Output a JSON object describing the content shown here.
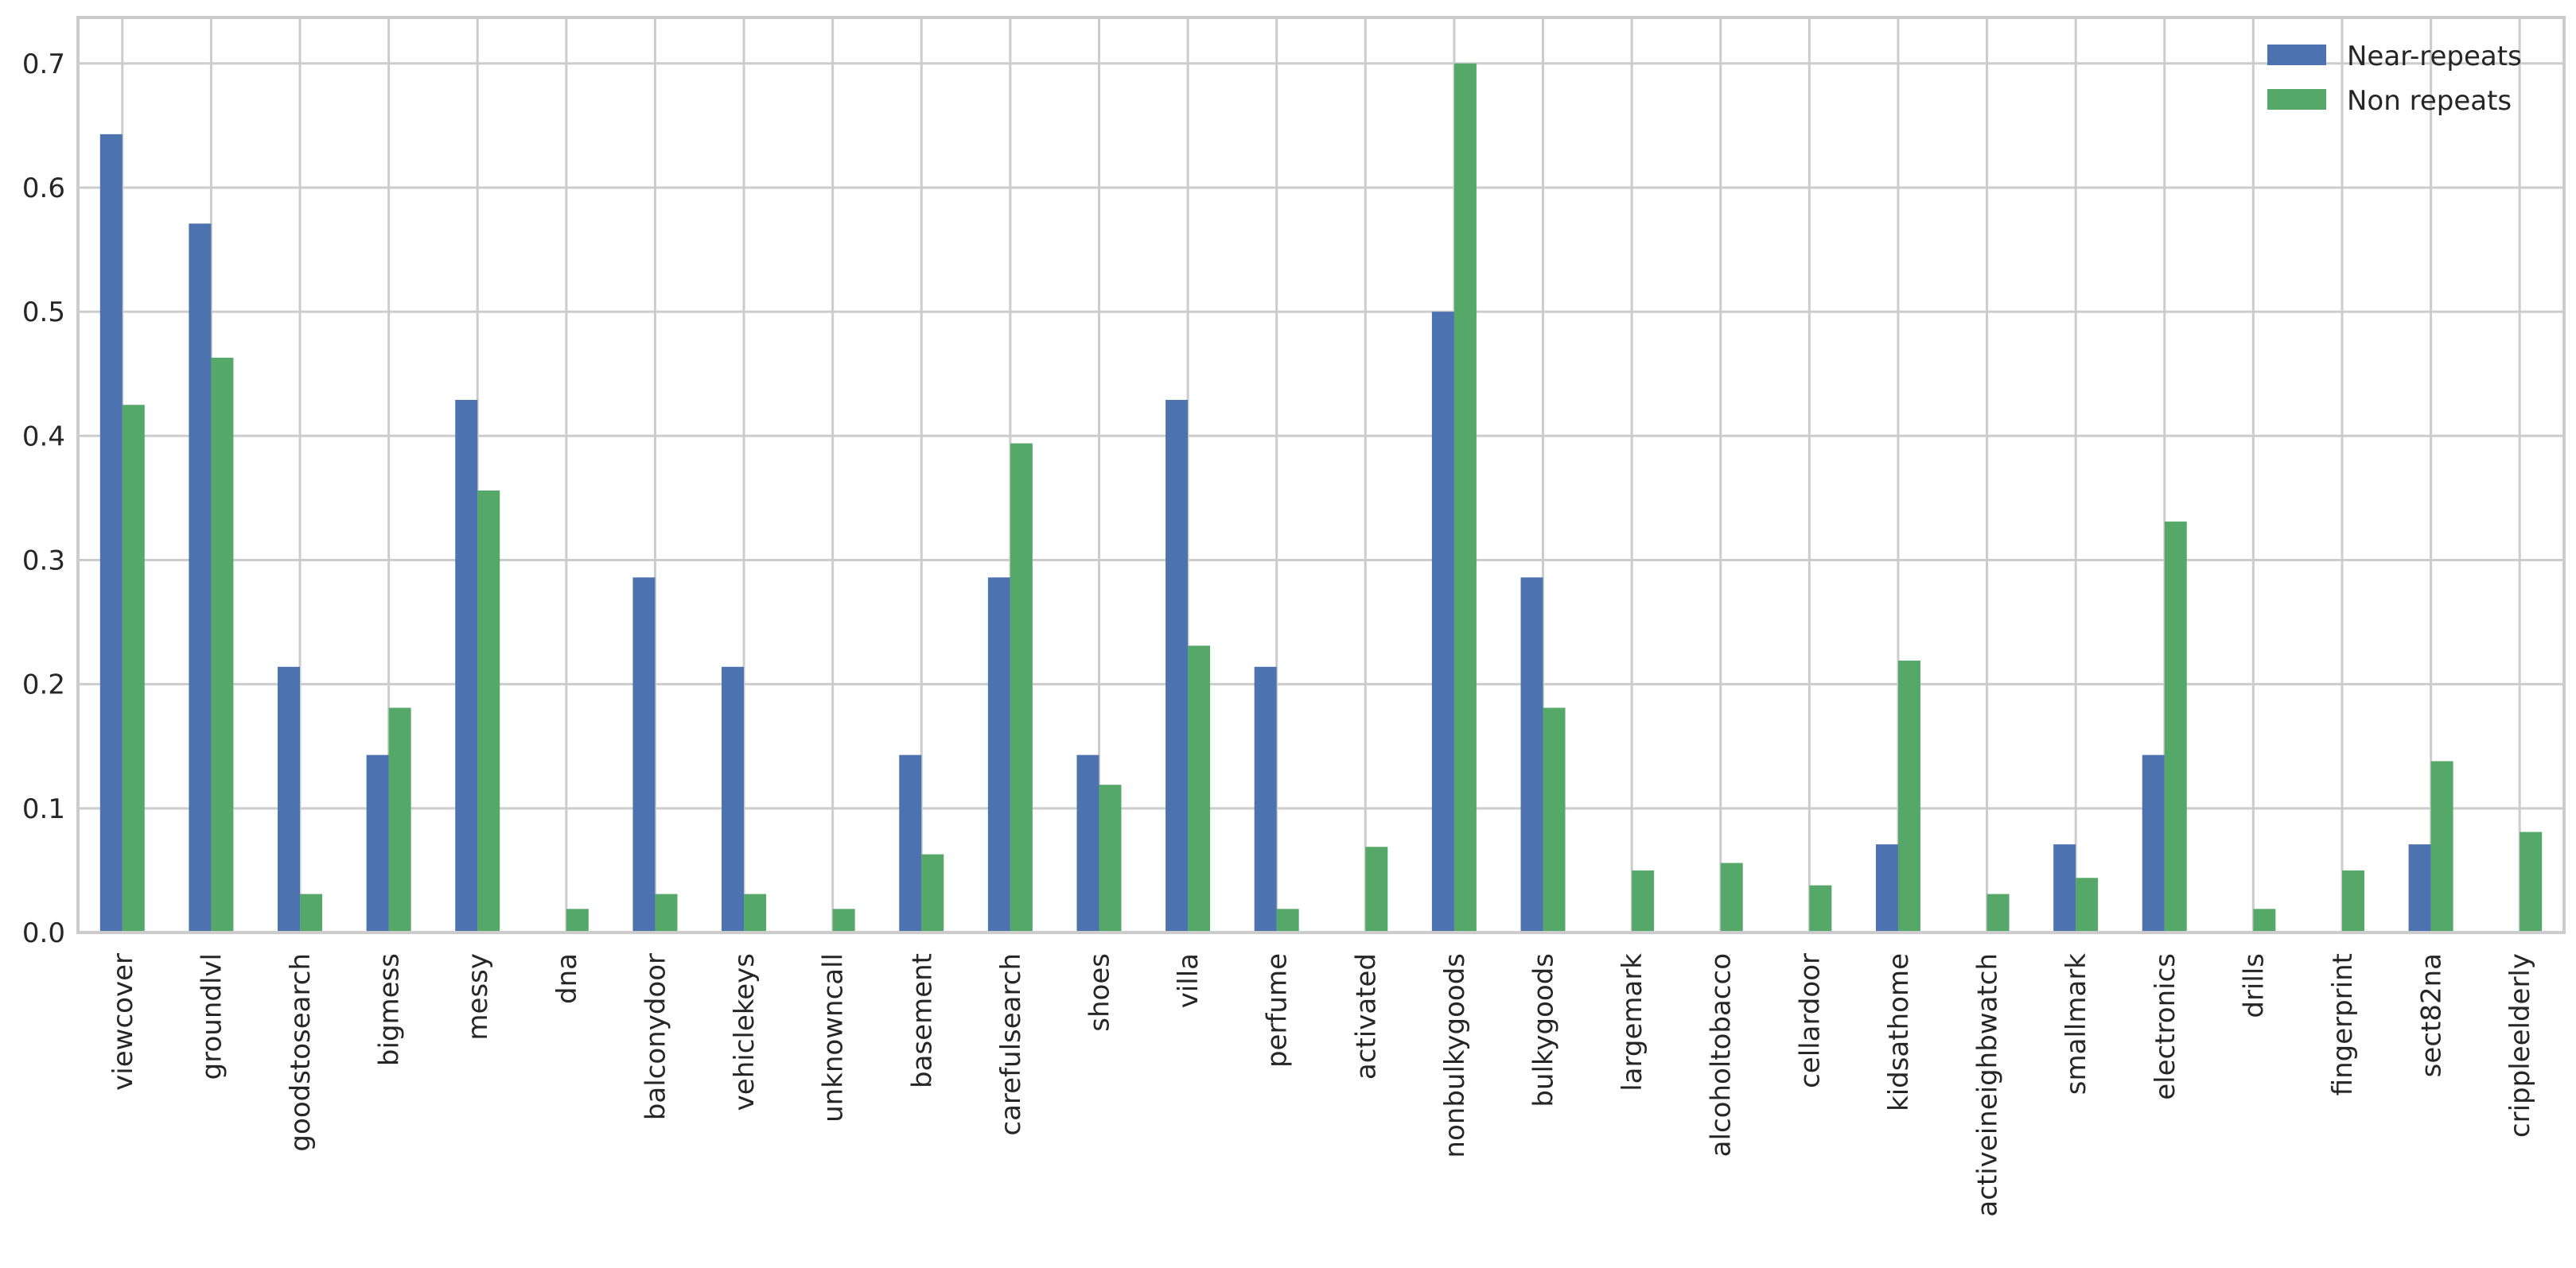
{
  "chart_data": {
    "type": "bar",
    "title": "",
    "xlabel": "",
    "ylabel": "",
    "ylim": [
      0,
      0.737
    ],
    "yticks": [
      "0.0",
      "0.1",
      "0.2",
      "0.3",
      "0.4",
      "0.5",
      "0.6",
      "0.7"
    ],
    "grid": true,
    "legend_position": "top-right",
    "categories": [
      "viewcover",
      "groundlvl",
      "goodstosearch",
      "bigmess",
      "messy",
      "dna",
      "balconydoor",
      "vehiclekeys",
      "unknowncall",
      "basement",
      "carefulsearch",
      "shoes",
      "villa",
      "perfume",
      "activated",
      "nonbulkygoods",
      "bulkygoods",
      "largemark",
      "alcoholtobacco",
      "cellardoor",
      "kidsathome",
      "activeineighbwatch",
      "smallmark",
      "electronics",
      "drills",
      "fingerprint",
      "sect82na",
      "crippleelderly"
    ],
    "series": [
      {
        "name": "Near-repeats",
        "color": "#4c72b0",
        "values": [
          0.643,
          0.571,
          0.214,
          0.143,
          0.429,
          0.0,
          0.286,
          0.214,
          0.0,
          0.143,
          0.286,
          0.143,
          0.429,
          0.214,
          0.0,
          0.5,
          0.286,
          0.0,
          0.0,
          0.0,
          0.071,
          0.0,
          0.071,
          0.143,
          0.0,
          0.0,
          0.071,
          0.0
        ]
      },
      {
        "name": "Non repeats",
        "color": "#55a868",
        "values": [
          0.425,
          0.463,
          0.031,
          0.181,
          0.356,
          0.019,
          0.031,
          0.031,
          0.019,
          0.063,
          0.394,
          0.119,
          0.231,
          0.019,
          0.069,
          0.7,
          0.181,
          0.05,
          0.056,
          0.038,
          0.219,
          0.031,
          0.044,
          0.331,
          0.019,
          0.05,
          0.138,
          0.081
        ]
      }
    ]
  }
}
